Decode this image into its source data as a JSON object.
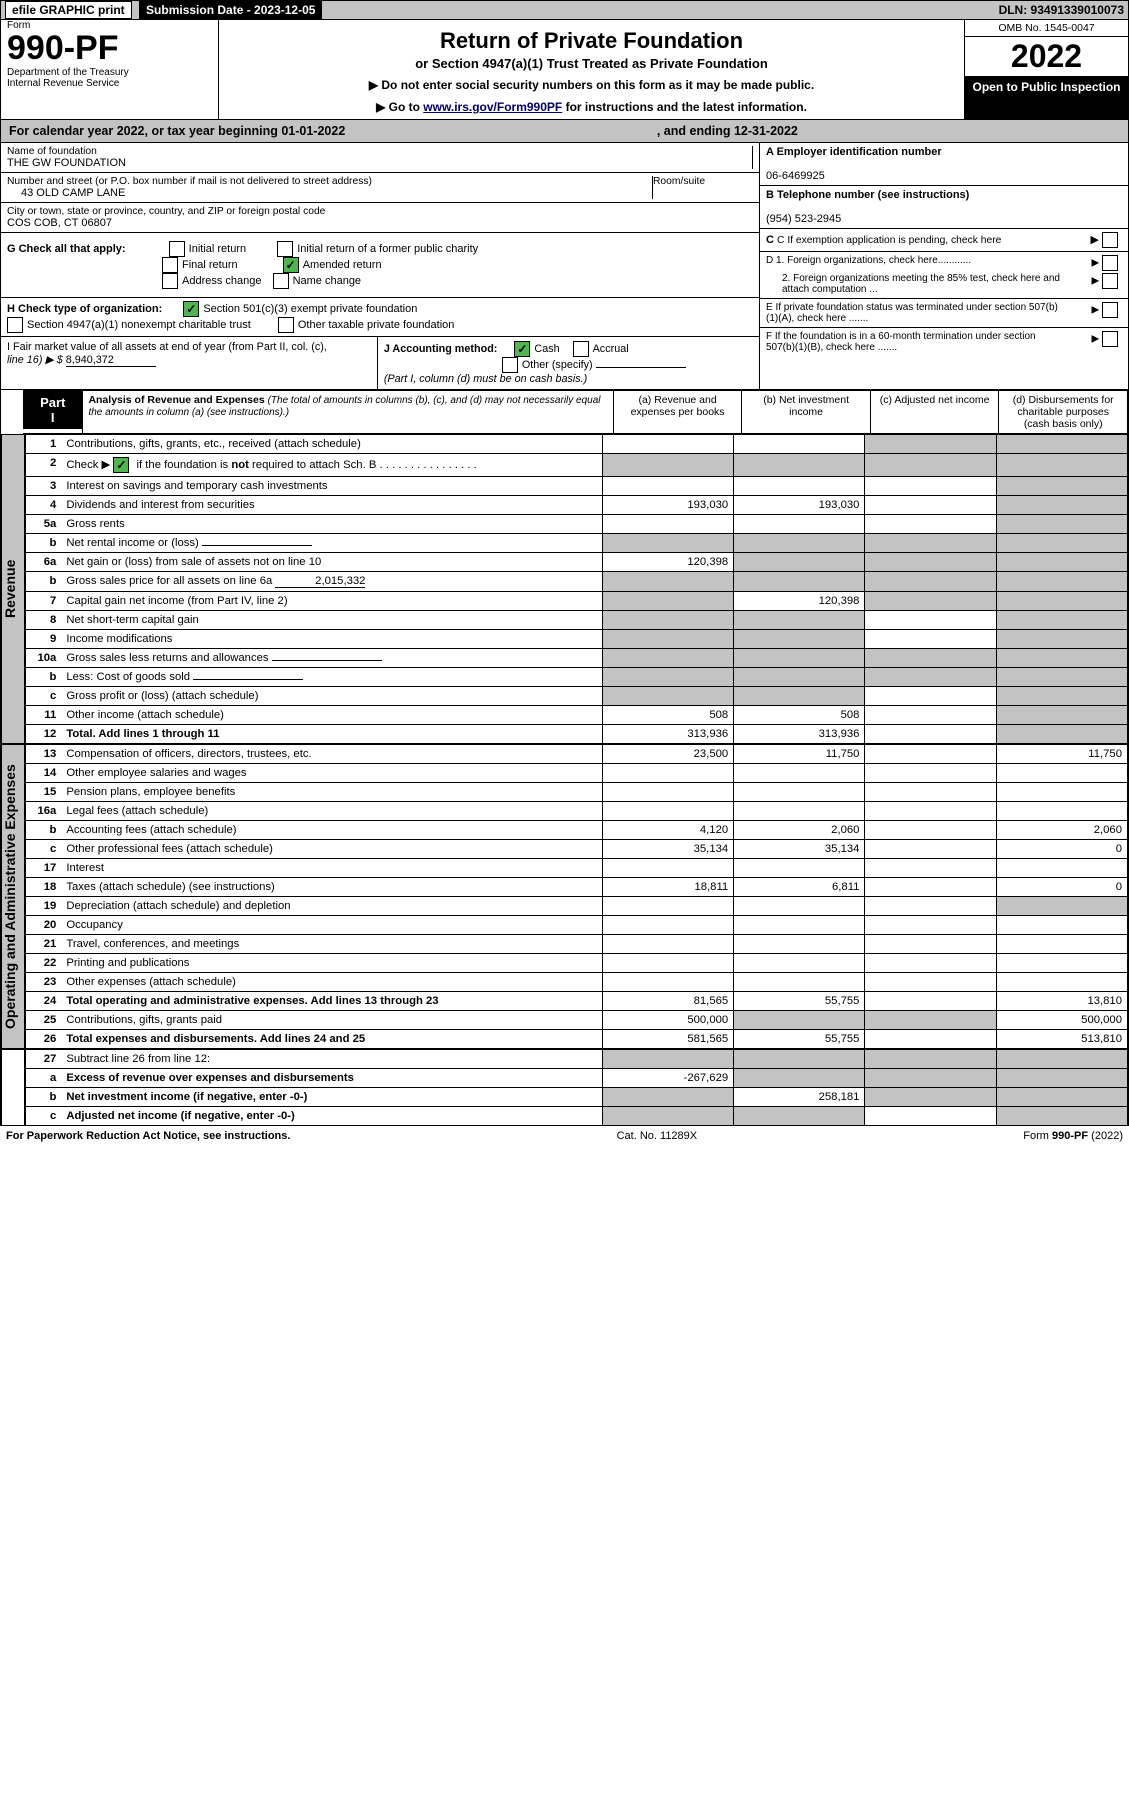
{
  "topbar": {
    "efile": "efile GRAPHIC print",
    "subdate_lbl": "Submission Date - 2023-12-05",
    "dln": "DLN: 93491339010073"
  },
  "head": {
    "form_word": "Form",
    "num": "990-PF",
    "dept": "Department of the Treasury",
    "irs": "Internal Revenue Service",
    "title": "Return of Private Foundation",
    "subtitle": "or Section 4947(a)(1) Trust Treated as Private Foundation",
    "note1": "▶ Do not enter social security numbers on this form as it may be made public.",
    "note2": "▶ Go to ",
    "link": "www.irs.gov/Form990PF",
    "note2b": " for instructions and the latest information.",
    "omb": "OMB No. 1545-0047",
    "year": "2022",
    "open": "Open to Public Inspection"
  },
  "cal": {
    "a": "For calendar year 2022, or tax year beginning 01-01-2022",
    "b": ", and ending 12-31-2022"
  },
  "info": {
    "name_lbl": "Name of foundation",
    "name": "THE GW FOUNDATION",
    "addr_lbl": "Number and street (or P.O. box number if mail is not delivered to street address)",
    "addr": "43 OLD CAMP LANE",
    "room": "Room/suite",
    "city_lbl": "City or town, state or province, country, and ZIP or foreign postal code",
    "city": "COS COB, CT  06807",
    "a_lbl": "A Employer identification number",
    "ein": "06-6469925",
    "b_lbl": "B Telephone number (see instructions)",
    "tel": "(954) 523-2945",
    "c_lbl": "C If exemption application is pending, check here",
    "d1": "D 1. Foreign organizations, check here............",
    "d2": "2. Foreign organizations meeting the 85% test, check here and attach computation ...",
    "e": "E  If private foundation status was terminated under section 507(b)(1)(A), check here .......",
    "f": "F  If the foundation is in a 60-month termination under section 507(b)(1)(B), check here .......",
    "g": "G Check all that apply:",
    "g_opts": [
      "Initial return",
      "Initial return of a former public charity",
      "Final return",
      "Amended return",
      "Address change",
      "Name change"
    ],
    "h": "H Check type of organization:",
    "h1": "Section 501(c)(3) exempt private foundation",
    "h2": "Section 4947(a)(1) nonexempt charitable trust",
    "h3": "Other taxable private foundation",
    "i": "I Fair market value of all assets at end of year (from Part II, col. (c),",
    "i2": "line 16) ▶ $",
    "iv": "8,940,372",
    "j": "J Accounting method:",
    "j1": "Cash",
    "j2": "Accrual",
    "j3": "Other (specify)",
    "jnote": "(Part I, column (d) must be on cash basis.)"
  },
  "part1": {
    "tab": "Part I",
    "title": "Analysis of Revenue and Expenses",
    "title_note": "(The total of amounts in columns (b), (c), and (d) may not necessarily equal the amounts in column (a) (see instructions).)",
    "cols": {
      "a": "(a) Revenue and expenses per books",
      "b": "(b) Net investment income",
      "c": "(c) Adjusted net income",
      "d": "(d) Disbursements for charitable purposes (cash basis only)"
    }
  },
  "side": {
    "rev": "Revenue",
    "oae": "Operating and Administrative Expenses"
  },
  "lines": [
    {
      "n": "1",
      "d": "Contributions, gifts, grants, etc., received (attach schedule)",
      "a": "",
      "b": "",
      "c": "s",
      "dsh": "s"
    },
    {
      "n": "2",
      "d": "Check ▶ ✓ if the foundation is not required to attach Sch. B",
      "a": "s",
      "b": "s",
      "c": "s",
      "dsh": "s",
      "chk": true
    },
    {
      "n": "3",
      "d": "Interest on savings and temporary cash investments",
      "a": "",
      "b": "",
      "c": "",
      "dsh": "s"
    },
    {
      "n": "4",
      "d": "Dividends and interest from securities",
      "a": "193,030",
      "b": "193,030",
      "c": "",
      "dsh": "s"
    },
    {
      "n": "5a",
      "d": "Gross rents",
      "a": "",
      "b": "",
      "c": "",
      "dsh": "s"
    },
    {
      "n": "b",
      "d": "Net rental income or (loss)",
      "a": "s",
      "b": "s",
      "c": "s",
      "dsh": "s",
      "inline": true
    },
    {
      "n": "6a",
      "d": "Net gain or (loss) from sale of assets not on line 10",
      "a": "120,398",
      "b": "s",
      "c": "s",
      "dsh": "s"
    },
    {
      "n": "b",
      "d": "Gross sales price for all assets on line 6a",
      "inline": true,
      "iv": "2,015,332",
      "a": "s",
      "b": "s",
      "c": "s",
      "dsh": "s"
    },
    {
      "n": "7",
      "d": "Capital gain net income (from Part IV, line 2)",
      "a": "s",
      "b": "120,398",
      "c": "s",
      "dsh": "s"
    },
    {
      "n": "8",
      "d": "Net short-term capital gain",
      "a": "s",
      "b": "s",
      "c": "",
      "dsh": "s"
    },
    {
      "n": "9",
      "d": "Income modifications",
      "a": "s",
      "b": "s",
      "c": "",
      "dsh": "s"
    },
    {
      "n": "10a",
      "d": "Gross sales less returns and allowances",
      "a": "s",
      "b": "s",
      "c": "s",
      "dsh": "s",
      "inline": true
    },
    {
      "n": "b",
      "d": "Less: Cost of goods sold",
      "a": "s",
      "b": "s",
      "c": "s",
      "dsh": "s",
      "inline": true
    },
    {
      "n": "c",
      "d": "Gross profit or (loss) (attach schedule)",
      "a": "s",
      "b": "s",
      "c": "",
      "dsh": "s"
    },
    {
      "n": "11",
      "d": "Other income (attach schedule)",
      "a": "508",
      "b": "508",
      "c": "",
      "dsh": "s"
    },
    {
      "n": "12",
      "d": "Total. Add lines 1 through 11",
      "a": "313,936",
      "b": "313,936",
      "c": "",
      "dsh": "s",
      "bold": true
    }
  ],
  "exp": [
    {
      "n": "13",
      "d": "Compensation of officers, directors, trustees, etc.",
      "a": "23,500",
      "b": "11,750",
      "c": "",
      "x": "11,750"
    },
    {
      "n": "14",
      "d": "Other employee salaries and wages",
      "a": "",
      "b": "",
      "c": "",
      "x": ""
    },
    {
      "n": "15",
      "d": "Pension plans, employee benefits",
      "a": "",
      "b": "",
      "c": "",
      "x": ""
    },
    {
      "n": "16a",
      "d": "Legal fees (attach schedule)",
      "a": "",
      "b": "",
      "c": "",
      "x": ""
    },
    {
      "n": "b",
      "d": "Accounting fees (attach schedule)",
      "a": "4,120",
      "b": "2,060",
      "c": "",
      "x": "2,060"
    },
    {
      "n": "c",
      "d": "Other professional fees (attach schedule)",
      "a": "35,134",
      "b": "35,134",
      "c": "",
      "x": "0"
    },
    {
      "n": "17",
      "d": "Interest",
      "a": "",
      "b": "",
      "c": "",
      "x": ""
    },
    {
      "n": "18",
      "d": "Taxes (attach schedule) (see instructions)",
      "a": "18,811",
      "b": "6,811",
      "c": "",
      "x": "0"
    },
    {
      "n": "19",
      "d": "Depreciation (attach schedule) and depletion",
      "a": "",
      "b": "",
      "c": "",
      "x": "s"
    },
    {
      "n": "20",
      "d": "Occupancy",
      "a": "",
      "b": "",
      "c": "",
      "x": ""
    },
    {
      "n": "21",
      "d": "Travel, conferences, and meetings",
      "a": "",
      "b": "",
      "c": "",
      "x": ""
    },
    {
      "n": "22",
      "d": "Printing and publications",
      "a": "",
      "b": "",
      "c": "",
      "x": ""
    },
    {
      "n": "23",
      "d": "Other expenses (attach schedule)",
      "a": "",
      "b": "",
      "c": "",
      "x": ""
    },
    {
      "n": "24",
      "d": "Total operating and administrative expenses. Add lines 13 through 23",
      "a": "81,565",
      "b": "55,755",
      "c": "",
      "x": "13,810",
      "bold": true
    },
    {
      "n": "25",
      "d": "Contributions, gifts, grants paid",
      "a": "500,000",
      "b": "s",
      "c": "s",
      "x": "500,000"
    },
    {
      "n": "26",
      "d": "Total expenses and disbursements. Add lines 24 and 25",
      "a": "581,565",
      "b": "55,755",
      "c": "",
      "x": "513,810",
      "bold": true
    }
  ],
  "l27": [
    {
      "n": "27",
      "d": "Subtract line 26 from line 12:",
      "a": "s",
      "b": "s",
      "c": "s",
      "x": "s"
    },
    {
      "n": "a",
      "d": "Excess of revenue over expenses and disbursements",
      "a": "-267,629",
      "b": "s",
      "c": "s",
      "x": "s",
      "bold": true
    },
    {
      "n": "b",
      "d": "Net investment income (if negative, enter -0-)",
      "a": "s",
      "b": "258,181",
      "c": "s",
      "x": "s",
      "bold": true
    },
    {
      "n": "c",
      "d": "Adjusted net income (if negative, enter -0-)",
      "a": "s",
      "b": "s",
      "c": "",
      "x": "s",
      "bold": true
    }
  ],
  "ftr": {
    "a": "For Paperwork Reduction Act Notice, see instructions.",
    "b": "Cat. No. 11289X",
    "c": "Form 990-PF (2022)"
  }
}
